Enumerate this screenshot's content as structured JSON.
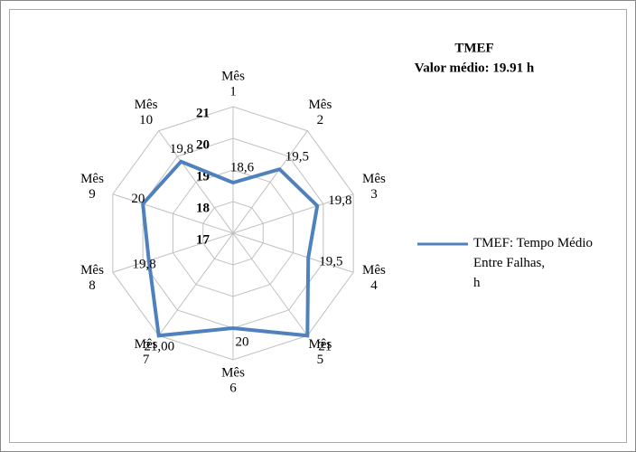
{
  "chart_data": {
    "type": "radar",
    "title": "TMEF",
    "subtitle": "Valor médio: 19.91 h",
    "categories": [
      "Mês 1",
      "Mês 2",
      "Mês 3",
      "Mês 4",
      "Mês 5",
      "Mês 6",
      "Mês 7",
      "Mês 8",
      "Mês 9",
      "Mês 10"
    ],
    "series": [
      {
        "name": "TMEF: Tempo Médio Entre Falhas, h",
        "color": "#4f81bd",
        "values": [
          18.6,
          19.5,
          19.8,
          19.5,
          21,
          20,
          21,
          19.8,
          20,
          19.8
        ],
        "value_labels": [
          "18,6",
          "19,5",
          "19,8",
          "19,5",
          "21",
          "20",
          "21,00",
          "19,8",
          "20",
          "19,8"
        ]
      }
    ],
    "ylim": [
      17,
      21
    ],
    "yticks": [
      17,
      18,
      19,
      20,
      21
    ],
    "grid": true,
    "legend": "right"
  }
}
